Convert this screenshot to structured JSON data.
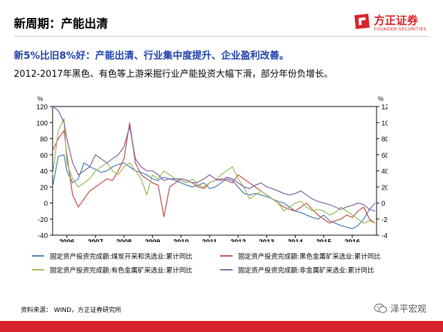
{
  "slide": {
    "title": "新周期：产能出清",
    "headline": "新5%比旧8%好：产能出清、行业集中度提升、企业盈利改善。",
    "subline": "2012-2017年黑色、有色等上游采掘行业产能投资大幅下滑，部分年份负增长。",
    "source": "资料来源： WIND，方正证券研究所",
    "watermark": "泽平宏观",
    "brand_color": "#d9232a",
    "headline_color": "#1f3ea8"
  },
  "logo": {
    "name": "方正证券",
    "sub": "FOUNDER SECURITIES",
    "icon": "founder-logo-icon"
  },
  "chart_data": {
    "type": "line",
    "xlabel": "",
    "ylabel_left": "%",
    "ylabel_right": "%",
    "ylim": [
      -40,
      120
    ],
    "yticks": [
      -40,
      -20,
      0,
      20,
      40,
      60,
      80,
      100,
      120
    ],
    "xlim": [
      2005.5,
      2016.85
    ],
    "xticks": [
      2006,
      2007,
      2008,
      2009,
      2010,
      2011,
      2012,
      2013,
      2014,
      2015,
      2016
    ],
    "x": [
      2005.5,
      2005.7,
      2005.9,
      2006.0,
      2006.2,
      2006.4,
      2006.6,
      2006.8,
      2007.0,
      2007.2,
      2007.4,
      2007.6,
      2007.8,
      2008.0,
      2008.2,
      2008.4,
      2008.6,
      2008.8,
      2009.0,
      2009.2,
      2009.4,
      2009.6,
      2009.8,
      2010.0,
      2010.2,
      2010.4,
      2010.6,
      2010.8,
      2011.0,
      2011.2,
      2011.4,
      2011.6,
      2011.8,
      2012.0,
      2012.2,
      2012.4,
      2012.6,
      2012.8,
      2013.0,
      2013.2,
      2013.4,
      2013.6,
      2013.8,
      2014.0,
      2014.2,
      2014.4,
      2014.6,
      2014.8,
      2015.0,
      2015.2,
      2015.4,
      2015.6,
      2015.8,
      2016.0,
      2016.2,
      2016.4,
      2016.6,
      2016.8
    ],
    "series": [
      {
        "name": "固定资产投资完成额:煤炭开采和洗选业:累计同比",
        "color": "#4a7ebb",
        "values": [
          20,
          58,
          60,
          40,
          25,
          30,
          50,
          45,
          42,
          38,
          40,
          45,
          48,
          50,
          45,
          40,
          38,
          35,
          30,
          28,
          32,
          30,
          28,
          25,
          22,
          20,
          22,
          25,
          18,
          20,
          25,
          30,
          28,
          20,
          12,
          10,
          12,
          10,
          8,
          5,
          2,
          0,
          -5,
          -10,
          -12,
          -15,
          -18,
          -20,
          -15,
          -22,
          -25,
          -28,
          -30,
          -32,
          -28,
          -20,
          -8,
          0
        ]
      },
      {
        "name": "固定资产投资完成额:黑色金属矿采选业:累计同比",
        "color": "#c0504d",
        "values": [
          65,
          80,
          90,
          60,
          10,
          -5,
          5,
          15,
          20,
          25,
          30,
          28,
          40,
          55,
          100,
          50,
          35,
          30,
          25,
          22,
          -17,
          20,
          25,
          30,
          28,
          25,
          20,
          18,
          25,
          28,
          30,
          28,
          25,
          35,
          30,
          25,
          20,
          15,
          10,
          5,
          0,
          -5,
          -8,
          -10,
          -5,
          0,
          -8,
          -15,
          -20,
          -25,
          -22,
          -20,
          -15,
          -18,
          -10,
          -5,
          -20,
          -25
        ]
      },
      {
        "name": "固定资产投资完成额:有色金属矿采选业:累计同比",
        "color": "#9bbb59",
        "values": [
          35,
          90,
          105,
          50,
          30,
          20,
          25,
          30,
          40,
          45,
          50,
          40,
          35,
          45,
          50,
          40,
          30,
          10,
          35,
          30,
          40,
          35,
          30,
          28,
          25,
          30,
          22,
          20,
          25,
          28,
          35,
          40,
          45,
          30,
          20,
          5,
          10,
          15,
          10,
          5,
          0,
          -10,
          -5,
          0,
          2,
          -5,
          -10,
          -8,
          -10,
          -15,
          -12,
          -5,
          -10,
          -15,
          -20,
          -25,
          -22,
          -25
        ]
      },
      {
        "name": "固定资产投资完成额:非金属矿采选业:累计同比",
        "color": "#8064a2",
        "values": [
          120,
          115,
          100,
          80,
          50,
          35,
          40,
          45,
          60,
          55,
          50,
          55,
          60,
          70,
          95,
          55,
          45,
          40,
          40,
          35,
          28,
          30,
          30,
          30,
          28,
          25,
          26,
          30,
          35,
          30,
          28,
          32,
          30,
          25,
          20,
          18,
          22,
          25,
          20,
          18,
          15,
          12,
          10,
          12,
          15,
          10,
          5,
          2,
          0,
          -2,
          -5,
          -8,
          -5,
          -3,
          0,
          -2,
          -8,
          -10
        ]
      }
    ]
  }
}
